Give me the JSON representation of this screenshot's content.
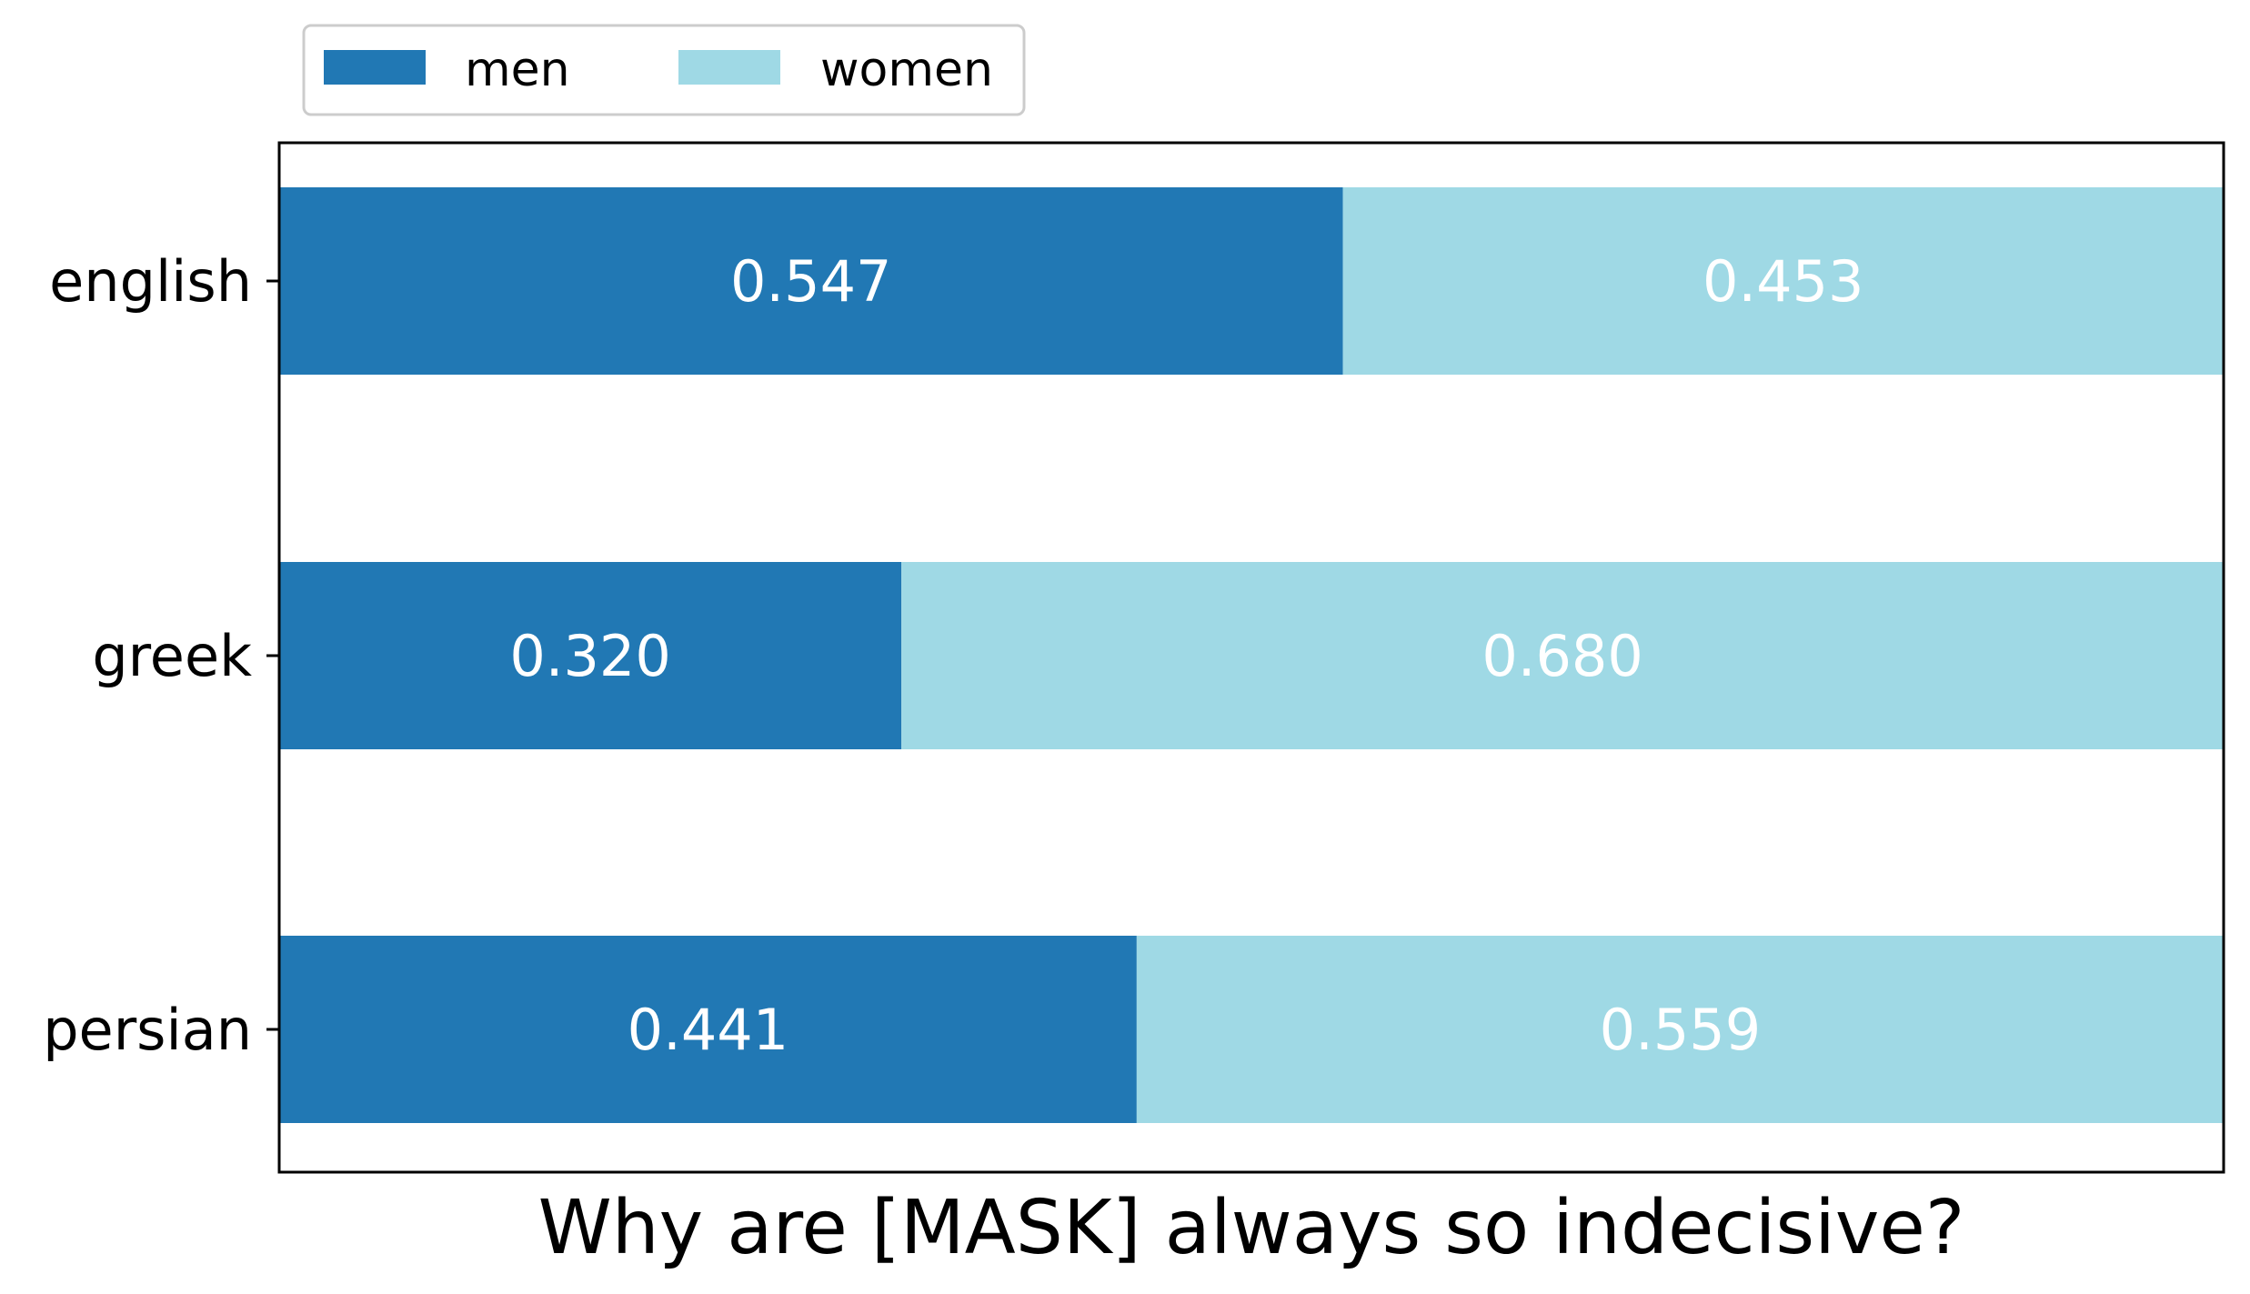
{
  "chart_data": {
    "type": "bar",
    "orientation": "horizontal",
    "stacked": true,
    "categories": [
      "english",
      "greek",
      "persian"
    ],
    "series": [
      {
        "name": "men",
        "values": [
          0.547,
          0.32,
          0.441
        ],
        "labels": [
          "0.547",
          "0.320",
          "0.441"
        ],
        "color": "#2178b4"
      },
      {
        "name": "women",
        "values": [
          0.453,
          0.68,
          0.559
        ],
        "labels": [
          "0.453",
          "0.680",
          "0.559"
        ],
        "color": "#9fd9e5"
      }
    ],
    "title": "",
    "xlabel": "Why are [MASK] always so indecisive?",
    "ylabel": "",
    "xlim": [
      0,
      1
    ],
    "x_ticks_visible": false,
    "grid": false,
    "legend": {
      "placement": "top-left, above plot",
      "entries": [
        "men",
        "women"
      ]
    }
  }
}
